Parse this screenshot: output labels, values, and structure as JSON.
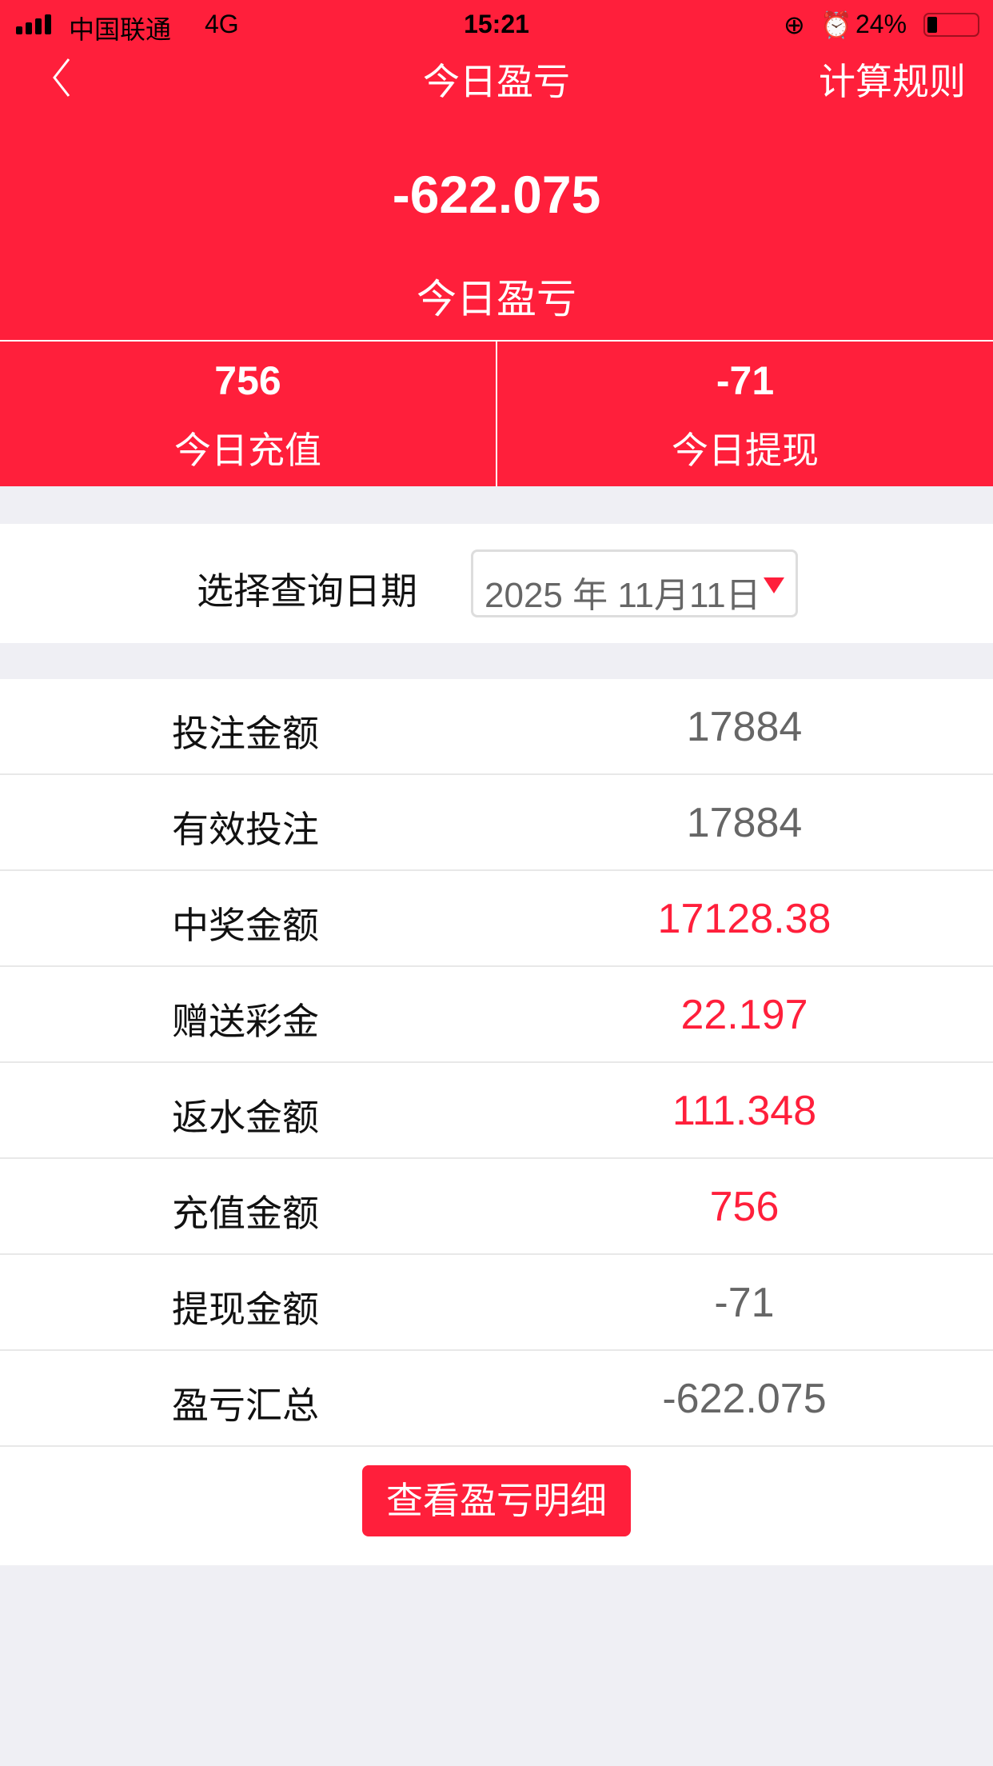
{
  "status_bar": {
    "carrier": "中国联通",
    "network": "4G",
    "time": "15:21",
    "battery": "24%"
  },
  "nav": {
    "title": "今日盈亏",
    "rule_link": "计算规则"
  },
  "summary": {
    "value": "-622.075",
    "label": "今日盈亏"
  },
  "stats": [
    {
      "value": "756",
      "label": "今日充值"
    },
    {
      "value": "-71",
      "label": "今日提现"
    }
  ],
  "date_filter": {
    "label": "选择查询日期",
    "value": "2025 年 11月11日"
  },
  "rows": [
    {
      "label": "投注金额",
      "value": "17884",
      "highlight": false
    },
    {
      "label": "有效投注",
      "value": "17884",
      "highlight": false
    },
    {
      "label": "中奖金额",
      "value": "17128.38",
      "highlight": true
    },
    {
      "label": "赠送彩金",
      "value": "22.197",
      "highlight": true
    },
    {
      "label": "返水金额",
      "value": "111.348",
      "highlight": true
    },
    {
      "label": "充值金额",
      "value": "756",
      "highlight": true
    },
    {
      "label": "提现金额",
      "value": "-71",
      "highlight": false
    },
    {
      "label": "盈亏汇总",
      "value": "-622.075",
      "highlight": false
    }
  ],
  "detail_button": "查看盈亏明细",
  "colors": {
    "accent": "#ff1f3b",
    "muted": "#666666",
    "background": "#efeff4"
  }
}
